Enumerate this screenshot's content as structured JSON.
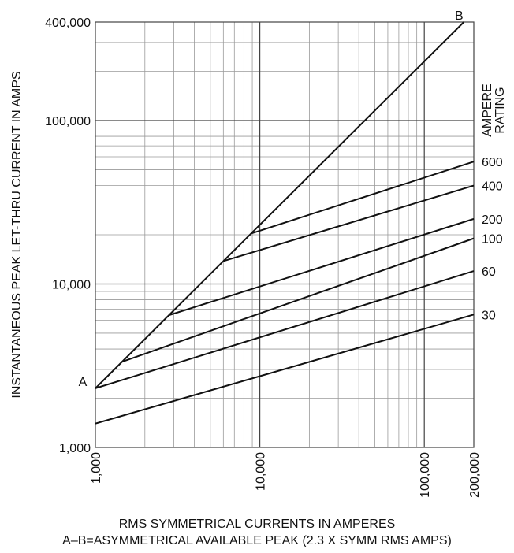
{
  "chart_data": {
    "type": "line",
    "x_scale": "log",
    "y_scale": "log",
    "xlim": [
      1000,
      200000
    ],
    "ylim": [
      1000,
      400000
    ],
    "grid": true,
    "xlabel": "RMS SYMMETRICAL CURRENTS IN AMPERES",
    "ylabel": "INSTANTANEOUS PEAK LET-THRU CURRENT IN AMPS",
    "caption": "A–B=ASYMMETRICAL AVAILABLE PEAK (2.3 X SYMM RMS AMPS)",
    "x_ticks": [
      {
        "value": 1000,
        "label": "1,000"
      },
      {
        "value": 10000,
        "label": "10,000"
      },
      {
        "value": 100000,
        "label": "100,000"
      },
      {
        "value": 200000,
        "label": "200,000"
      }
    ],
    "y_ticks": [
      {
        "value": 1000,
        "label": "1,000"
      },
      {
        "value": 10000,
        "label": "10,000"
      },
      {
        "value": 100000,
        "label": "100,000"
      },
      {
        "value": 400000,
        "label": "400,000"
      }
    ],
    "rating_title": [
      "AMPERE",
      "RATING"
    ],
    "reference_line": {
      "start_label": "A",
      "end_label": "B",
      "points": [
        [
          1000,
          2300
        ],
        [
          174000,
          400000
        ]
      ]
    },
    "series": [
      {
        "name": "600",
        "points": [
          [
            8850,
            20350
          ],
          [
            200000,
            56000
          ]
        ]
      },
      {
        "name": "400",
        "points": [
          [
            6000,
            13800
          ],
          [
            200000,
            40000
          ]
        ]
      },
      {
        "name": "200",
        "points": [
          [
            2800,
            6440
          ],
          [
            200000,
            25000
          ]
        ]
      },
      {
        "name": "100",
        "points": [
          [
            1450,
            3340
          ],
          [
            200000,
            19000
          ]
        ]
      },
      {
        "name": "60",
        "points": [
          [
            1000,
            2300
          ],
          [
            200000,
            12000
          ]
        ]
      },
      {
        "name": "30",
        "points": [
          [
            1000,
            1400
          ],
          [
            200000,
            6500
          ]
        ]
      }
    ]
  }
}
